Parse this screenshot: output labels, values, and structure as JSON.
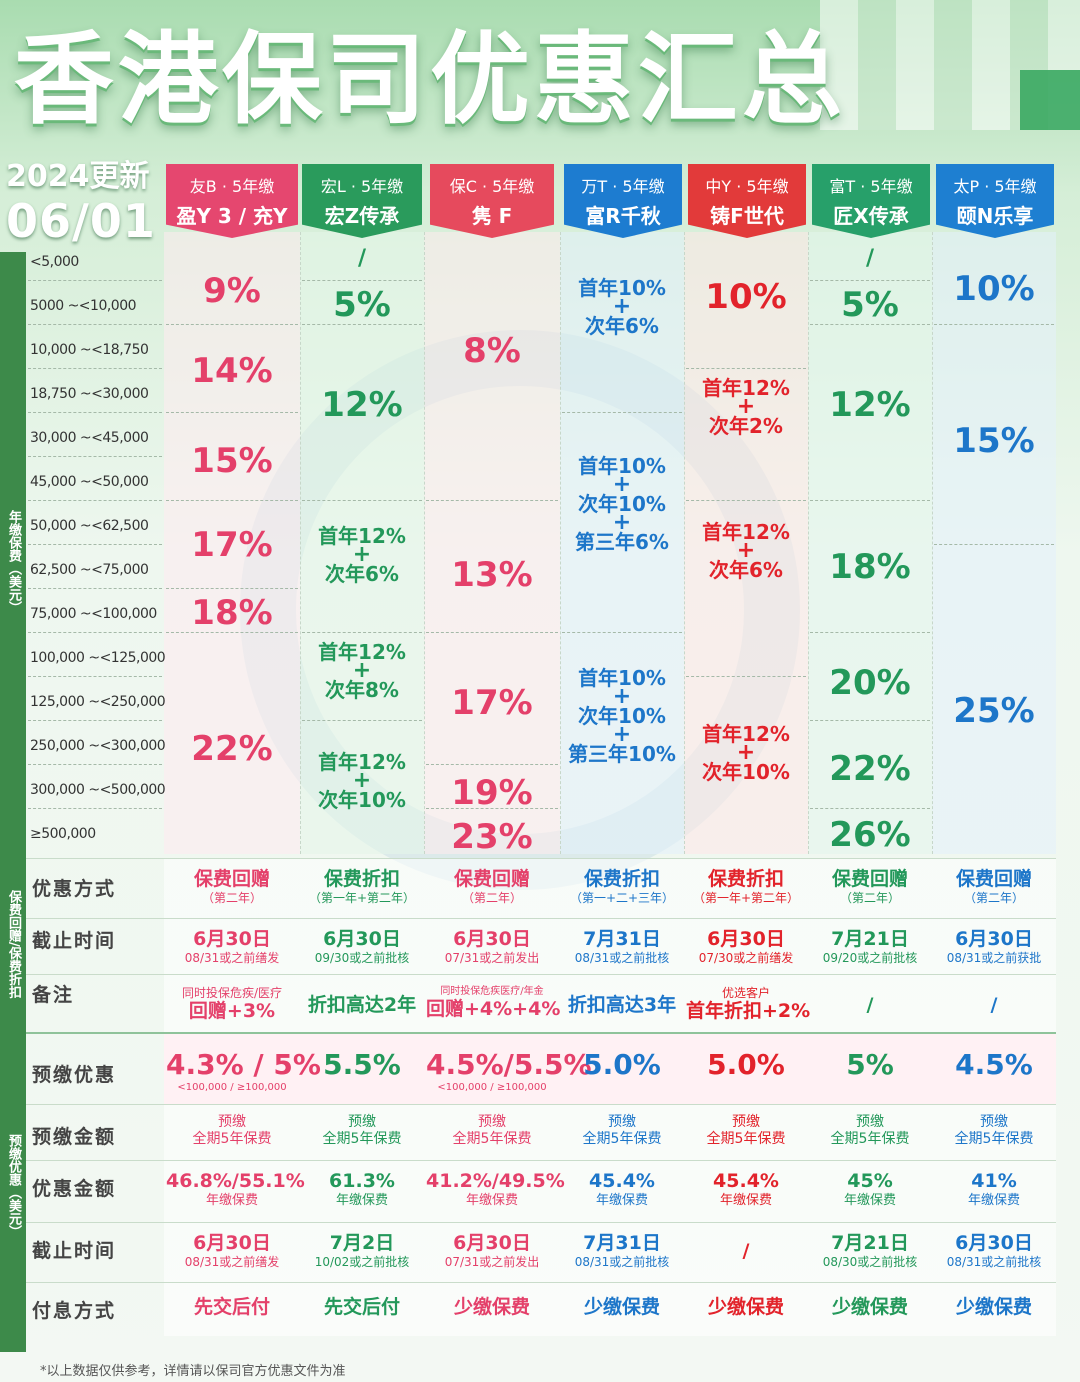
{
  "title": "香港保司优惠汇总",
  "update": {
    "line1": "2024更新",
    "line2": "06/01"
  },
  "side_labels": {
    "premium": "年缴保费（美元）",
    "discount": "保费回赠/保费折扣",
    "prepay": "预缴优惠（美元）"
  },
  "columns": [
    {
      "line1": "友B · 5年缴",
      "line2": "盈Y 3 / 充Y",
      "color": "#e5476f"
    },
    {
      "line1": "宏L · 5年缴",
      "line2": "宏Z传承",
      "color": "#2a9b5c"
    },
    {
      "line1": "保C · 5年缴",
      "line2": "隽 F",
      "color": "#e64a5d"
    },
    {
      "line1": "万T · 5年缴",
      "line2": "富R千秋",
      "color": "#1d7cd0"
    },
    {
      "line1": "中Y · 5年缴",
      "line2": "铸F世代",
      "color": "#e23a3a"
    },
    {
      "line1": "富T · 5年缴",
      "line2": "匠X传承",
      "color": "#27a06a"
    },
    {
      "line1": "太P · 5年缴",
      "line2": "颐N乐享",
      "color": "#1e7fd1"
    }
  ],
  "premium_ranges": [
    "<5,000",
    "5000  ~<10,000",
    "10,000  ~<18,750",
    "18,750  ~<30,000",
    "30,000  ~<45,000",
    "45,000  ~<50,000",
    "50,000  ~<62,500",
    "62,500  ~<75,000",
    "75,000  ~<100,000",
    "100,000 ~<125,000",
    "125,000 ~<250,000",
    "250,000 ~<300,000",
    "300,000 ~<500,000",
    "≥500,000"
  ],
  "rates": {
    "c0": [
      "9%",
      "14%",
      "15%",
      "17%",
      "18%",
      "22%"
    ],
    "c1": {
      "r0": "/",
      "r1": "5%",
      "r2": "12%",
      "r3a": "首年12%",
      "r3b": "次年6%",
      "r4a": "首年12%",
      "r4b": "次年8%",
      "r5a": "首年12%",
      "r5b": "次年10%"
    },
    "c2": [
      "8%",
      "13%",
      "17%",
      "19%",
      "23%"
    ],
    "c3": {
      "a1": "首年10%",
      "a2": "次年6%",
      "b1": "首年10%",
      "b2": "次年10%",
      "b3": "第三年6%",
      "c1": "首年10%",
      "c2": "次年10%",
      "c3": "第三年10%"
    },
    "c4": {
      "r0": "10%",
      "a1": "首年12%",
      "a2": "次年2%",
      "b1": "首年12%",
      "b2": "次年6%",
      "c1": "首年12%",
      "c2": "次年10%"
    },
    "c5": [
      "/",
      "5%",
      "12%",
      "18%",
      "20%",
      "22%",
      "26%"
    ],
    "c6": [
      "10%",
      "15%",
      "25%"
    ],
    "plus": "+"
  },
  "rows": {
    "method": {
      "label": "优惠方式",
      "cells": [
        [
          "保费回赠",
          "（第二年）"
        ],
        [
          "保费折扣",
          "（第一年+第二年）"
        ],
        [
          "保费回赠",
          "（第二年）"
        ],
        [
          "保费折扣",
          "（第一+二+三年）"
        ],
        [
          "保费折扣",
          "（第一年+第二年）"
        ],
        [
          "保费回赠",
          "（第二年）"
        ],
        [
          "保费回赠",
          "（第二年）"
        ]
      ]
    },
    "deadline": {
      "label": "截止时间",
      "cells": [
        [
          "6月30日",
          "08/31或之前缮发"
        ],
        [
          "6月30日",
          "09/30或之前批核"
        ],
        [
          "6月30日",
          "07/31或之前发出"
        ],
        [
          "7月31日",
          "08/31或之前批核"
        ],
        [
          "6月30日",
          "07/30或之前缮发"
        ],
        [
          "7月21日",
          "09/20或之前批核"
        ],
        [
          "6月30日",
          "08/31或之前获批"
        ]
      ]
    },
    "note": {
      "label": "备注",
      "cells": [
        [
          "同时投保危疾/医疗",
          "回赠+3%"
        ],
        [
          "",
          "折扣高达2年"
        ],
        [
          "同时投保危疾医疗/年金",
          "回赠+4%+4%"
        ],
        [
          "",
          "折扣高达3年"
        ],
        [
          "优选客户",
          "首年折扣+2%"
        ],
        [
          "",
          "/"
        ],
        [
          "",
          "/"
        ]
      ]
    },
    "prepay": {
      "label": "预缴优惠",
      "cells": [
        [
          "4.3% / 5%",
          "<100,000  /  ≥100,000"
        ],
        [
          "5.5%",
          ""
        ],
        [
          "4.5%/5.5%",
          "<100,000  /  ≥100,000"
        ],
        [
          "5.0%",
          ""
        ],
        [
          "5.0%",
          ""
        ],
        [
          "5%",
          ""
        ],
        [
          "4.5%",
          ""
        ]
      ]
    },
    "amount": {
      "label": "预缴金额",
      "cells": [
        [
          "预缴",
          "全期5年保费"
        ],
        [
          "预缴",
          "全期5年保费"
        ],
        [
          "预缴",
          "全期5年保费"
        ],
        [
          "预缴",
          "全期5年保费"
        ],
        [
          "预缴",
          "全期5年保费"
        ],
        [
          "预缴",
          "全期5年保费"
        ],
        [
          "预缴",
          "全期5年保费"
        ]
      ]
    },
    "benefit": {
      "label": "优惠金额",
      "cells": [
        [
          "46.8%/55.1%",
          "年缴保费"
        ],
        [
          "61.3%",
          "年缴保费"
        ],
        [
          "41.2%/49.5%",
          "年缴保费"
        ],
        [
          "45.4%",
          "年缴保费"
        ],
        [
          "45.4%",
          "年缴保费"
        ],
        [
          "45%",
          "年缴保费"
        ],
        [
          "41%",
          "年缴保费"
        ]
      ]
    },
    "deadline2": {
      "label": "截止时间",
      "cells": [
        [
          "6月30日",
          "08/31或之前缮发"
        ],
        [
          "7月2日",
          "10/02或之前批核"
        ],
        [
          "6月30日",
          "07/31或之前发出"
        ],
        [
          "7月31日",
          "08/31或之前批核"
        ],
        [
          "/",
          ""
        ],
        [
          "7月21日",
          "08/30或之前批核"
        ],
        [
          "6月30日",
          "08/31或之前批核"
        ]
      ]
    },
    "interest": {
      "label": "付息方式",
      "cells": [
        [
          "先交后付"
        ],
        [
          "先交后付"
        ],
        [
          "少缴保费"
        ],
        [
          "少缴保费"
        ],
        [
          "少缴保费"
        ],
        [
          "少缴保费"
        ],
        [
          "少缴保费"
        ]
      ]
    }
  },
  "footnote": "*以上数据仅供参考，详情请以保司官方优惠文件为准"
}
